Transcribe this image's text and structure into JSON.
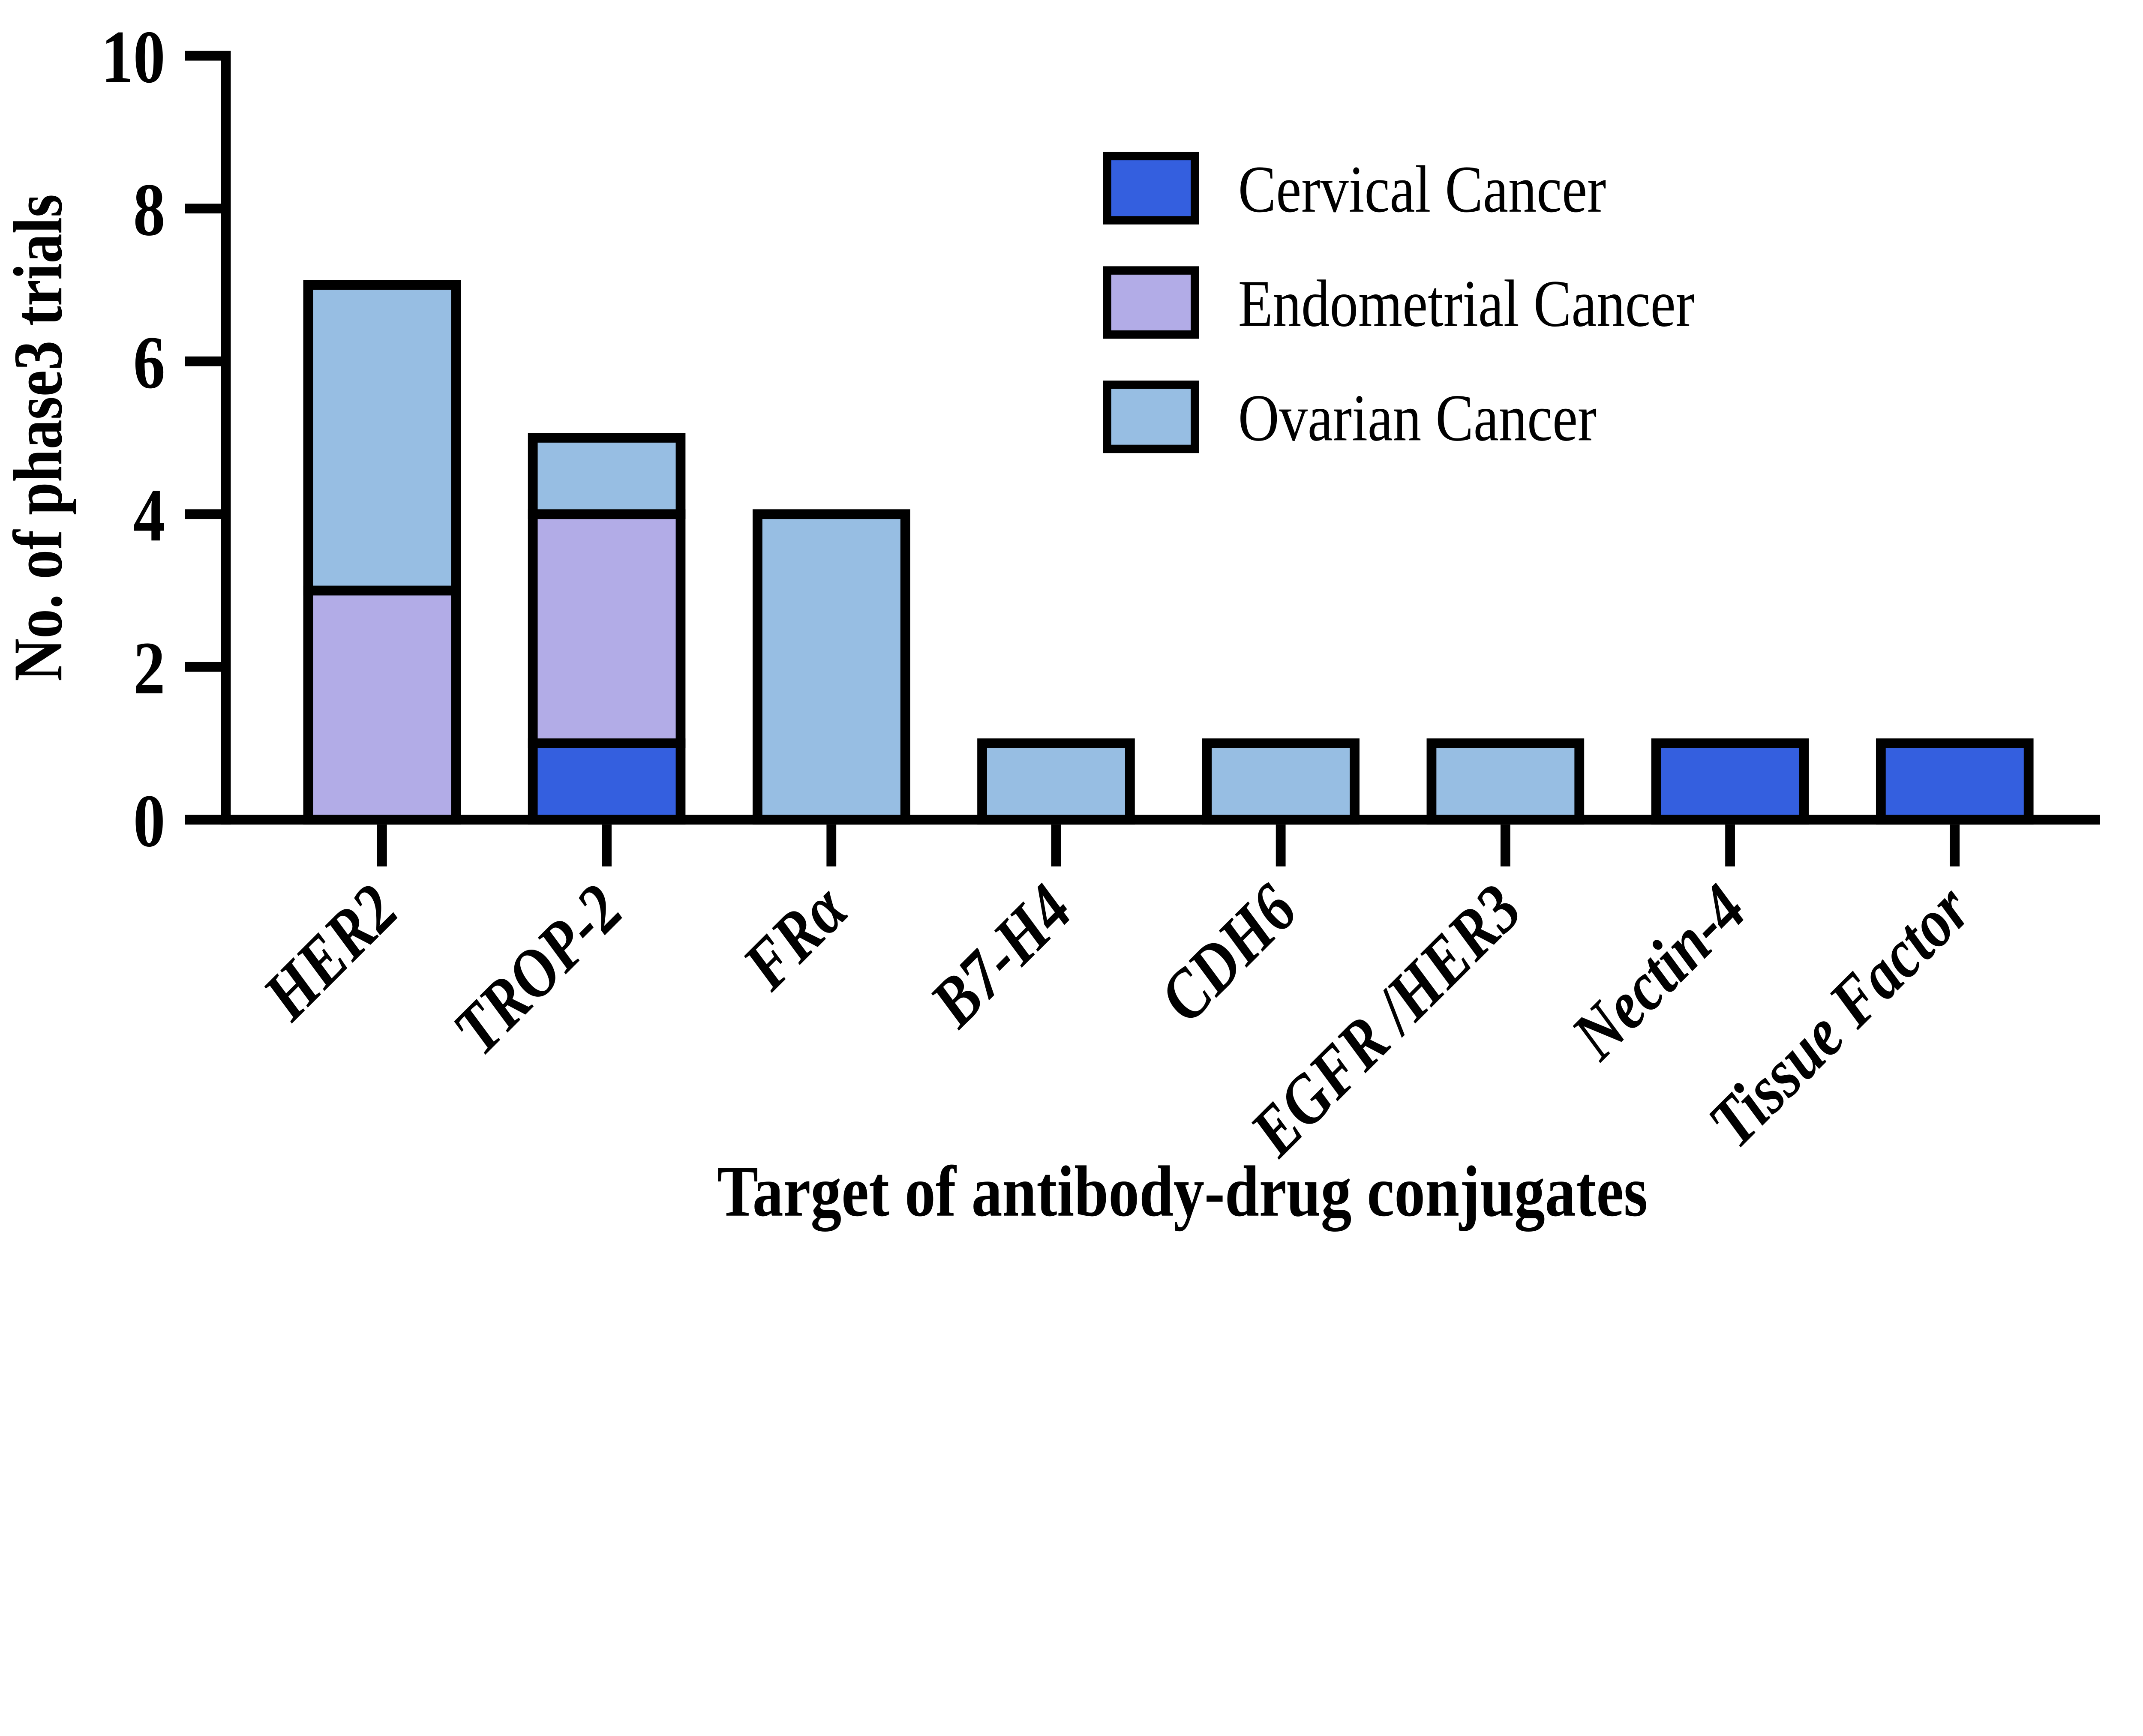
{
  "figure": {
    "background": "#ffffff"
  },
  "chart_data": {
    "type": "bar",
    "stacked": true,
    "title": "",
    "xlabel": "Target of antibody-drug conjugates",
    "ylabel": "No. of phase3 trials",
    "categories": [
      "HER2",
      "TROP-2",
      "FRα",
      "B7-H4",
      "CDH6",
      "EGFR /HER3",
      "Nectin-4",
      "Tissue Factor"
    ],
    "series": [
      {
        "name": "Cervical Cancer",
        "color": "#345FDF",
        "values": [
          0,
          1,
          0,
          0,
          0,
          0,
          1,
          1
        ]
      },
      {
        "name": "Endometrial Cancer",
        "color": "#B2ACE7",
        "values": [
          3,
          3,
          0,
          0,
          0,
          0,
          0,
          0
        ]
      },
      {
        "name": "Ovarian Cancer",
        "color": "#97BEE3",
        "values": [
          4,
          1,
          4,
          1,
          1,
          1,
          0,
          0
        ]
      }
    ],
    "totals": [
      7,
      5,
      4,
      1,
      1,
      1,
      1,
      1
    ],
    "ylim": [
      0,
      10
    ],
    "yticks": [
      0,
      2,
      4,
      6,
      8,
      10
    ],
    "legend_position": "upper right",
    "grid": false,
    "axis_color": "#000000",
    "bar_outline_color": "#000000"
  }
}
